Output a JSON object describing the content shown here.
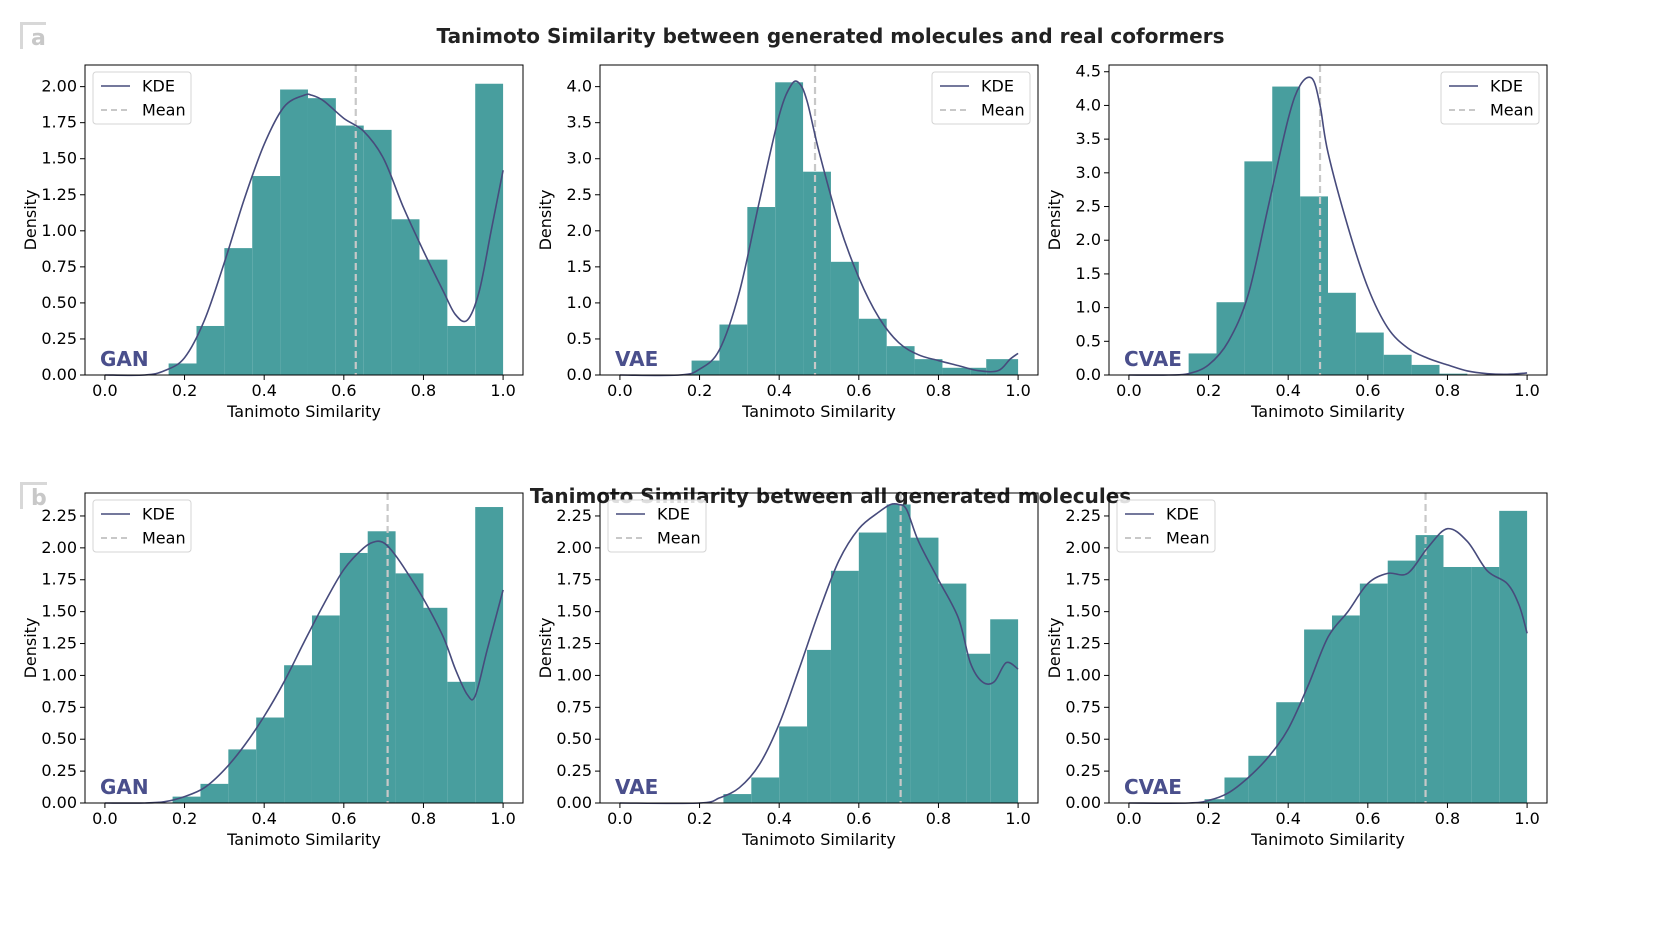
{
  "colors": {
    "bar": "#489e9e",
    "kde": "#474b7c",
    "mean": "#c8c8c8",
    "model_label": "#4a4f8c",
    "panel_label": "#c8c8c8"
  },
  "panels": [
    {
      "label": "a",
      "title": "Tanimoto Similarity between generated molecules and real coformers"
    },
    {
      "label": "b",
      "title": "Tanimoto Similarity between all generated molecules"
    }
  ],
  "chart_data": [
    {
      "type": "bar",
      "panel": "a",
      "model": "GAN",
      "title": "",
      "xlabel": "Tanimoto Similarity",
      "ylabel": "Density",
      "xlim": [
        -0.05,
        1.05
      ],
      "ylim": [
        0,
        2.15
      ],
      "xticks": [
        "0.0",
        "0.2",
        "0.4",
        "0.6",
        "0.8",
        "1.0"
      ],
      "yticks": [
        "0.00",
        "0.25",
        "0.50",
        "0.75",
        "1.00",
        "1.25",
        "1.50",
        "1.75",
        "2.00"
      ],
      "legend": [
        "KDE",
        "Mean"
      ],
      "legend_loc": "upper left",
      "bin_edges": [
        0.16,
        0.23,
        0.3,
        0.37,
        0.44,
        0.51,
        0.58,
        0.65,
        0.72,
        0.79,
        0.86,
        0.93,
        1.0
      ],
      "values": [
        0.08,
        0.34,
        0.88,
        1.38,
        1.98,
        1.92,
        1.73,
        1.7,
        1.08,
        0.8,
        0.34,
        2.02
      ],
      "mean": 0.63,
      "kde_x": [
        0.0,
        0.1,
        0.15,
        0.2,
        0.25,
        0.3,
        0.35,
        0.4,
        0.45,
        0.5,
        0.52,
        0.55,
        0.6,
        0.65,
        0.7,
        0.75,
        0.8,
        0.85,
        0.88,
        0.91,
        0.94,
        0.97,
        1.0
      ],
      "kde_y": [
        0.0,
        0.0,
        0.03,
        0.12,
        0.38,
        0.78,
        1.22,
        1.6,
        1.86,
        1.94,
        1.94,
        1.9,
        1.78,
        1.69,
        1.5,
        1.16,
        0.86,
        0.58,
        0.42,
        0.38,
        0.58,
        1.0,
        1.42
      ]
    },
    {
      "type": "bar",
      "panel": "a",
      "model": "VAE",
      "title": "",
      "xlabel": "Tanimoto Similarity",
      "ylabel": "Density",
      "xlim": [
        -0.05,
        1.05
      ],
      "ylim": [
        0,
        4.3
      ],
      "xticks": [
        "0.0",
        "0.2",
        "0.4",
        "0.6",
        "0.8",
        "1.0"
      ],
      "yticks": [
        "0.0",
        "0.5",
        "1.0",
        "1.5",
        "2.0",
        "2.5",
        "3.0",
        "3.5",
        "4.0"
      ],
      "legend": [
        "KDE",
        "Mean"
      ],
      "legend_loc": "upper right",
      "bin_edges": [
        0.18,
        0.25,
        0.32,
        0.39,
        0.46,
        0.53,
        0.6,
        0.67,
        0.74,
        0.81,
        0.88,
        0.92,
        1.0
      ],
      "values": [
        0.2,
        0.7,
        2.33,
        4.06,
        2.82,
        1.57,
        0.78,
        0.4,
        0.22,
        0.1,
        0.1,
        0.22
      ],
      "mean": 0.49,
      "kde_x": [
        0.0,
        0.15,
        0.2,
        0.25,
        0.3,
        0.35,
        0.4,
        0.43,
        0.45,
        0.47,
        0.5,
        0.55,
        0.6,
        0.65,
        0.7,
        0.75,
        0.8,
        0.85,
        0.9,
        0.95,
        0.98,
        1.0
      ],
      "kde_y": [
        0.0,
        0.0,
        0.08,
        0.35,
        1.15,
        2.4,
        3.6,
        4.02,
        4.05,
        3.8,
        3.1,
        2.1,
        1.35,
        0.8,
        0.45,
        0.28,
        0.2,
        0.13,
        0.06,
        0.06,
        0.22,
        0.3
      ]
    },
    {
      "type": "bar",
      "panel": "a",
      "model": "CVAE",
      "title": "",
      "xlabel": "Tanimoto Similarity",
      "ylabel": "Density",
      "xlim": [
        -0.05,
        1.05
      ],
      "ylim": [
        0,
        4.6
      ],
      "xticks": [
        "0.0",
        "0.2",
        "0.4",
        "0.6",
        "0.8",
        "1.0"
      ],
      "yticks": [
        "0.0",
        "0.5",
        "1.0",
        "1.5",
        "2.0",
        "2.5",
        "3.0",
        "3.5",
        "4.0",
        "4.5"
      ],
      "legend": [
        "KDE",
        "Mean"
      ],
      "legend_loc": "upper right",
      "bin_edges": [
        0.15,
        0.22,
        0.29,
        0.36,
        0.43,
        0.5,
        0.57,
        0.64,
        0.71,
        0.78,
        0.85
      ],
      "values": [
        0.32,
        1.08,
        3.17,
        4.28,
        2.65,
        1.22,
        0.63,
        0.3,
        0.15,
        0.02
      ],
      "mean": 0.48,
      "kde_x": [
        0.0,
        0.1,
        0.15,
        0.2,
        0.25,
        0.3,
        0.35,
        0.4,
        0.43,
        0.46,
        0.48,
        0.5,
        0.55,
        0.6,
        0.65,
        0.7,
        0.75,
        0.8,
        0.85,
        0.9,
        0.95,
        1.0
      ],
      "kde_y": [
        0.0,
        0.0,
        0.02,
        0.15,
        0.5,
        1.2,
        2.5,
        3.8,
        4.3,
        4.4,
        4.0,
        3.3,
        2.2,
        1.3,
        0.7,
        0.4,
        0.25,
        0.15,
        0.06,
        0.02,
        0.01,
        0.03
      ]
    },
    {
      "type": "bar",
      "panel": "b",
      "model": "GAN",
      "title": "",
      "xlabel": "Tanimoto Similarity",
      "ylabel": "Density",
      "xlim": [
        -0.05,
        1.05
      ],
      "ylim": [
        0,
        2.43
      ],
      "xticks": [
        "0.0",
        "0.2",
        "0.4",
        "0.6",
        "0.8",
        "1.0"
      ],
      "yticks": [
        "0.00",
        "0.25",
        "0.50",
        "0.75",
        "1.00",
        "1.25",
        "1.50",
        "1.75",
        "2.00",
        "2.25"
      ],
      "legend": [
        "KDE",
        "Mean"
      ],
      "legend_loc": "upper left",
      "bin_edges": [
        0.17,
        0.24,
        0.31,
        0.38,
        0.45,
        0.52,
        0.59,
        0.66,
        0.73,
        0.8,
        0.86,
        0.93,
        1.0
      ],
      "values": [
        0.05,
        0.15,
        0.42,
        0.67,
        1.08,
        1.47,
        1.96,
        2.13,
        1.8,
        1.53,
        0.95,
        2.32
      ],
      "mean": 0.71,
      "kde_x": [
        0.0,
        0.1,
        0.15,
        0.2,
        0.25,
        0.3,
        0.35,
        0.4,
        0.45,
        0.5,
        0.55,
        0.6,
        0.65,
        0.68,
        0.7,
        0.72,
        0.75,
        0.8,
        0.85,
        0.88,
        0.91,
        0.93,
        0.96,
        1.0
      ],
      "kde_y": [
        0.0,
        0.0,
        0.01,
        0.05,
        0.12,
        0.26,
        0.45,
        0.68,
        0.95,
        1.26,
        1.56,
        1.83,
        2.0,
        2.05,
        2.04,
        1.98,
        1.85,
        1.6,
        1.3,
        1.05,
        0.85,
        0.84,
        1.2,
        1.67
      ]
    },
    {
      "type": "bar",
      "panel": "b",
      "model": "VAE",
      "title": "",
      "xlabel": "Tanimoto Similarity",
      "ylabel": "Density",
      "xlim": [
        -0.05,
        1.05
      ],
      "ylim": [
        0,
        2.43
      ],
      "xticks": [
        "0.0",
        "0.2",
        "0.4",
        "0.6",
        "0.8",
        "1.0"
      ],
      "yticks": [
        "0.00",
        "0.25",
        "0.50",
        "0.75",
        "1.00",
        "1.25",
        "1.50",
        "1.75",
        "2.00",
        "2.25"
      ],
      "legend": [
        "KDE",
        "Mean"
      ],
      "legend_loc": "upper left",
      "bin_edges": [
        0.26,
        0.33,
        0.4,
        0.47,
        0.53,
        0.6,
        0.67,
        0.73,
        0.8,
        0.87,
        0.93,
        1.0
      ],
      "values": [
        0.07,
        0.2,
        0.6,
        1.2,
        1.82,
        2.12,
        2.34,
        2.08,
        1.72,
        1.17,
        1.44
      ],
      "mean": 0.705,
      "kde_x": [
        0.0,
        0.2,
        0.25,
        0.3,
        0.35,
        0.4,
        0.45,
        0.5,
        0.55,
        0.6,
        0.65,
        0.68,
        0.7,
        0.72,
        0.75,
        0.8,
        0.85,
        0.88,
        0.91,
        0.94,
        0.97,
        1.0
      ],
      "kde_y": [
        0.0,
        0.0,
        0.04,
        0.12,
        0.3,
        0.62,
        1.05,
        1.5,
        1.9,
        2.15,
        2.28,
        2.34,
        2.34,
        2.3,
        2.05,
        1.75,
        1.45,
        1.1,
        0.95,
        0.95,
        1.1,
        1.05
      ]
    },
    {
      "type": "bar",
      "panel": "b",
      "model": "CVAE",
      "title": "",
      "xlabel": "Tanimoto Similarity",
      "ylabel": "Density",
      "xlim": [
        -0.05,
        1.05
      ],
      "ylim": [
        0,
        2.43
      ],
      "xticks": [
        "0.0",
        "0.2",
        "0.4",
        "0.6",
        "0.8",
        "1.0"
      ],
      "yticks": [
        "0.00",
        "0.25",
        "0.50",
        "0.75",
        "1.00",
        "1.25",
        "1.50",
        "1.75",
        "2.00",
        "2.25"
      ],
      "legend": [
        "KDE",
        "Mean"
      ],
      "legend_loc": "upper left",
      "bin_edges": [
        0.19,
        0.24,
        0.3,
        0.37,
        0.44,
        0.51,
        0.58,
        0.65,
        0.72,
        0.79,
        0.86,
        0.93,
        1.0
      ],
      "values": [
        0.03,
        0.2,
        0.37,
        0.79,
        1.36,
        1.47,
        1.72,
        1.9,
        2.1,
        1.85,
        1.85,
        2.29
      ],
      "mean": 0.745,
      "kde_x": [
        0.0,
        0.15,
        0.2,
        0.25,
        0.3,
        0.35,
        0.4,
        0.45,
        0.5,
        0.55,
        0.6,
        0.65,
        0.7,
        0.75,
        0.8,
        0.85,
        0.9,
        0.95,
        0.98,
        1.0
      ],
      "kde_y": [
        0.0,
        0.0,
        0.02,
        0.08,
        0.2,
        0.36,
        0.58,
        0.92,
        1.3,
        1.5,
        1.72,
        1.8,
        1.8,
        2.0,
        2.15,
        2.05,
        1.82,
        1.72,
        1.55,
        1.33
      ]
    }
  ]
}
